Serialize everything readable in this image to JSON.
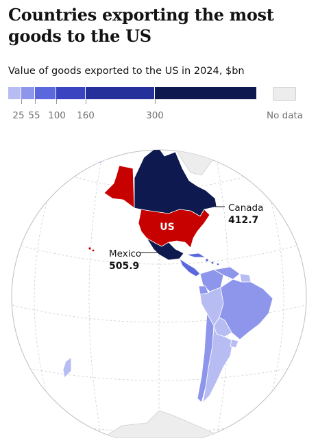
{
  "title": "Countries exporting the most goods to the US",
  "subtitle": "Value of goods exported to the US in 2024, $bn",
  "legend": {
    "thresholds": [
      "25",
      "55",
      "100",
      "160",
      "300"
    ],
    "colors": [
      "#b7bdf2",
      "#8d96ea",
      "#5b67dc",
      "#3a44c0",
      "#26309a",
      "#0e1a4f"
    ],
    "no_data_label": "No data",
    "no_data_color": "#ededed"
  },
  "colors": {
    "us": "#c70000",
    "ocean": "#ffffff",
    "graticule": "#c8c8c8"
  },
  "map": {
    "highlight_label": "US",
    "callouts": [
      {
        "name": "Canada",
        "value": "412.7"
      },
      {
        "name": "Mexico",
        "value": "505.9"
      }
    ]
  }
}
